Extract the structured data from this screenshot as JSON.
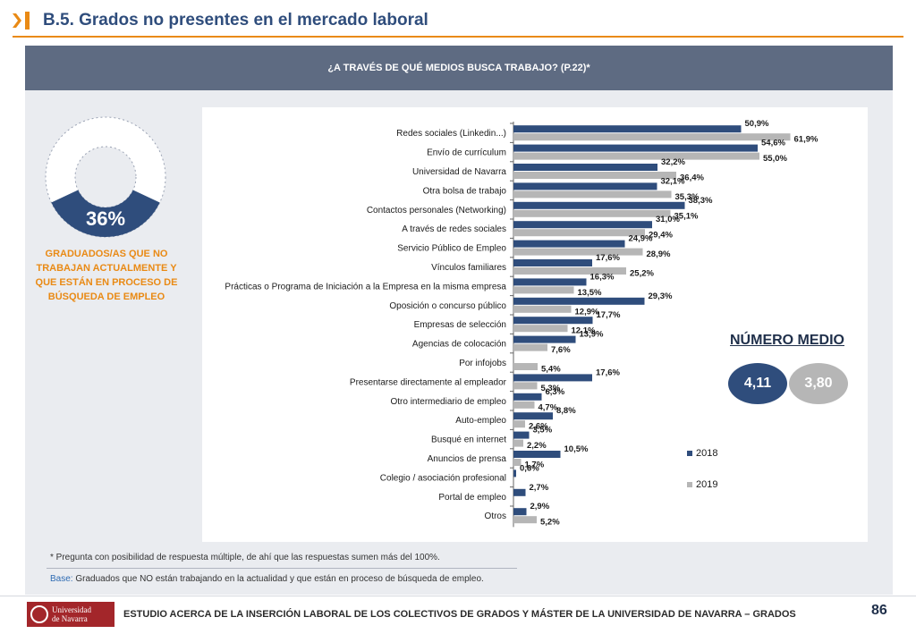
{
  "header": {
    "title": "B.5. Grados no presentes en el mercado laboral"
  },
  "banner": {
    "text": "¿A TRAVÉS DE QUÉ MEDIOS BUSCA TRABAJO? (P.22)*"
  },
  "donut": {
    "value": 36,
    "label_text": "36%",
    "caption": "GRADUADOS/AS QUE NO TRABAJAN ACTUALMENTE Y QUE ESTÁN EN PROCESO DE BÚSQUEDA DE EMPLEO",
    "fill_color": "#2f4d7c"
  },
  "numero_medio": {
    "title": "NÚMERO MEDIO",
    "value_2018": "4,11",
    "value_2019": "3,80"
  },
  "chart_data": {
    "type": "bar",
    "orientation": "horizontal",
    "categories": [
      "Redes sociales (Linkedin...)",
      "Envío de currículum",
      "Universidad de Navarra",
      "Otra bolsa de trabajo",
      "Contactos personales (Networking)",
      "A través de redes sociales",
      "Servicio Público de Empleo",
      "Vínculos familiares",
      "Prácticas o Programa de Iniciación a la Empresa en la misma empresa",
      "Oposición o concurso público",
      "Empresas de selección",
      "Agencias de colocación",
      "Por infojobs",
      "Presentarse directamente al empleador",
      "Otro intermediario de empleo",
      "Auto-empleo",
      "Busqué en internet",
      "Anuncios de prensa",
      "Colegio / asociación profesional",
      "Portal de empleo",
      "Otros"
    ],
    "series": [
      {
        "name": "2018",
        "color": "#2f4d7c",
        "values": [
          50.9,
          54.6,
          32.2,
          32.1,
          38.3,
          31.0,
          24.9,
          17.6,
          16.3,
          29.3,
          17.7,
          13.9,
          null,
          17.6,
          6.3,
          8.8,
          3.5,
          10.5,
          0.6,
          2.7,
          2.9
        ],
        "labels": [
          "50,9%",
          "54,6%",
          "32,2%",
          "32,1%",
          "38,3%",
          "31,0%",
          "24,9%",
          "17,6%",
          "16,3%",
          "29,3%",
          "17,7%",
          "13,9%",
          "",
          "17,6%",
          "6,3%",
          "8,8%",
          "3,5%",
          "10,5%",
          "0,6%",
          "2,7%",
          "2,9%"
        ]
      },
      {
        "name": "2019",
        "color": "#b6b6b6",
        "values": [
          61.9,
          55.0,
          36.4,
          35.3,
          35.1,
          29.4,
          28.9,
          25.2,
          13.5,
          12.9,
          12.1,
          7.6,
          5.4,
          5.3,
          4.7,
          2.6,
          2.2,
          1.7,
          null,
          null,
          5.2
        ],
        "labels": [
          "61,9%",
          "55,0%",
          "36,4%",
          "35,3%",
          "35,1%",
          "29,4%",
          "28,9%",
          "25,2%",
          "13,5%",
          "12,9%",
          "12,1%",
          "7,6%",
          "5,4%",
          "5,3%",
          "4,7%",
          "2,6%",
          "2,2%",
          "1,7%",
          "",
          "",
          "5,2%"
        ]
      }
    ],
    "xlim": [
      0,
      70
    ],
    "legend": "right",
    "grid": false
  },
  "footnote": "* Pregunta con posibilidad de respuesta múltiple, de  ahí que las respuestas sumen más del 100%.",
  "base": {
    "label": "Base:",
    "text": " Graduados que NO están trabajando en la actualidad y que están en proceso de búsqueda de empleo."
  },
  "footer": {
    "logo_line1": "Universidad",
    "logo_line2": "de Navarra",
    "text": "ESTUDIO ACERCA DE LA INSERCIÓN LABORAL DE LOS COLECTIVOS DE GRADOS Y MÁSTER DE LA UNIVERSIDAD DE NAVARRA – GRADOS",
    "page": "86"
  }
}
